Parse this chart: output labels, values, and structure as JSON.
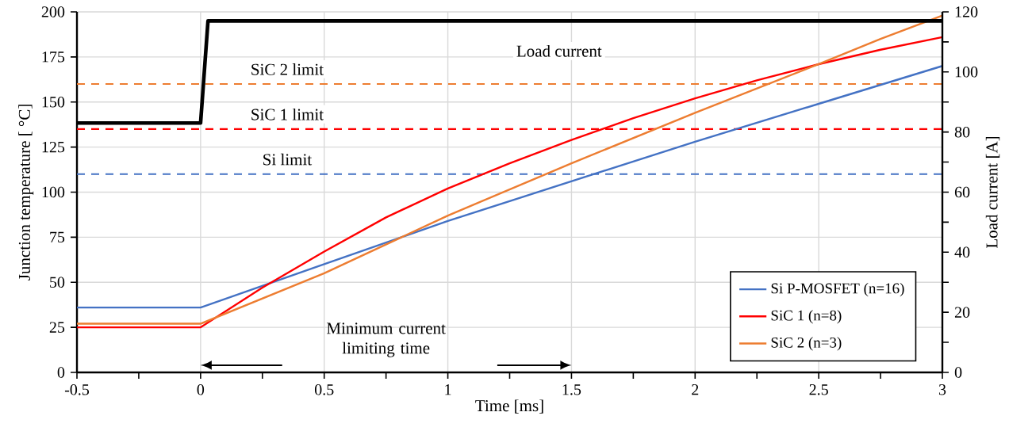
{
  "chart_data": {
    "type": "line",
    "xlabel": "Time [ms]",
    "ylabel": "Junction temperature [ °C]",
    "y2label": "Load current [A]",
    "xlim": [
      -0.5,
      3
    ],
    "xticks": [
      {
        "value": -0.5,
        "label": "-0.5"
      },
      0,
      {
        "value": 0.5,
        "label": "0.5"
      },
      1,
      {
        "value": 1.5,
        "label": "1.5"
      },
      2,
      {
        "value": 2.5,
        "label": "2.5"
      },
      3
    ],
    "ylim": [
      0,
      200
    ],
    "yticks": [
      0,
      25,
      50,
      75,
      100,
      125,
      150,
      175,
      200
    ],
    "y2lim": [
      0,
      120
    ],
    "y2ticks": [
      0,
      20,
      40,
      60,
      80,
      100,
      120
    ],
    "grid": true,
    "legend": "bottom right",
    "marker": "none",
    "line_style": "solid",
    "series": [
      {
        "name": "Si P-MOSFET (n=16)",
        "color": "#4472c4",
        "x": [
          -0.5,
          0,
          0.5,
          1,
          1.5,
          2,
          2.5,
          3
        ],
        "values": [
          36,
          36,
          60,
          84,
          106,
          128,
          149,
          170
        ]
      },
      {
        "name": "SiC 1 (n=8)",
        "color": "#ff0000",
        "x": [
          -0.5,
          0,
          0.25,
          0.5,
          0.75,
          1,
          1.25,
          1.5,
          1.75,
          2,
          2.25,
          2.5,
          2.75,
          3
        ],
        "values": [
          25,
          25,
          47,
          67,
          86,
          102,
          116,
          129,
          141,
          152,
          162,
          171,
          179,
          186
        ]
      },
      {
        "name": "SiC 2 (n=3)",
        "color": "#ed7d31",
        "x": [
          -0.5,
          0,
          0.5,
          0.75,
          1,
          1.5,
          2,
          2.5,
          2.75,
          3
        ],
        "values": [
          27,
          27,
          55,
          71,
          87,
          116,
          144,
          171,
          185,
          198
        ]
      },
      {
        "name": "Load current",
        "color": "#000000",
        "axis": "y2",
        "x": [
          -0.5,
          0,
          0.03,
          3
        ],
        "values": [
          83,
          83,
          117,
          117
        ]
      }
    ],
    "ref_lines": [
      {
        "axis": "y",
        "value": 110,
        "label": "Si limit",
        "color": "#4472c4",
        "line_style": "dashed"
      },
      {
        "axis": "y",
        "value": 135,
        "label": "SiC 1 limit",
        "color": "#ff0000",
        "line_style": "dashed"
      },
      {
        "axis": "y",
        "value": 160,
        "label": "SiC 2 limit",
        "color": "#ed7d31",
        "line_style": "dashed"
      }
    ],
    "annotations": [
      "Minimum current limiting time"
    ]
  }
}
